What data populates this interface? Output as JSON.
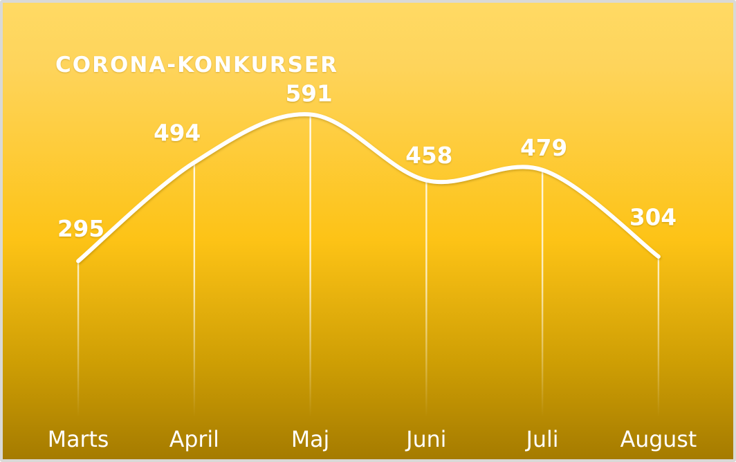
{
  "colors": {
    "background_top": "#FFDA64",
    "background_mid": "#FDC316",
    "background_bottom": "#A57B00",
    "frame": "#D9D9D6",
    "line": "#FFFFFF",
    "text": "#FFFFFF"
  },
  "chart_data": {
    "type": "line",
    "title": "CORONA-KONKURSER",
    "categories": [
      "Marts",
      "April",
      "Maj",
      "Juni",
      "Juli",
      "August"
    ],
    "values": [
      295,
      494,
      591,
      458,
      479,
      304
    ],
    "smooth": true,
    "data_labels_shown": true,
    "markers": "none",
    "grid": "off",
    "legend": "none",
    "xlabel": "",
    "ylabel": ""
  }
}
